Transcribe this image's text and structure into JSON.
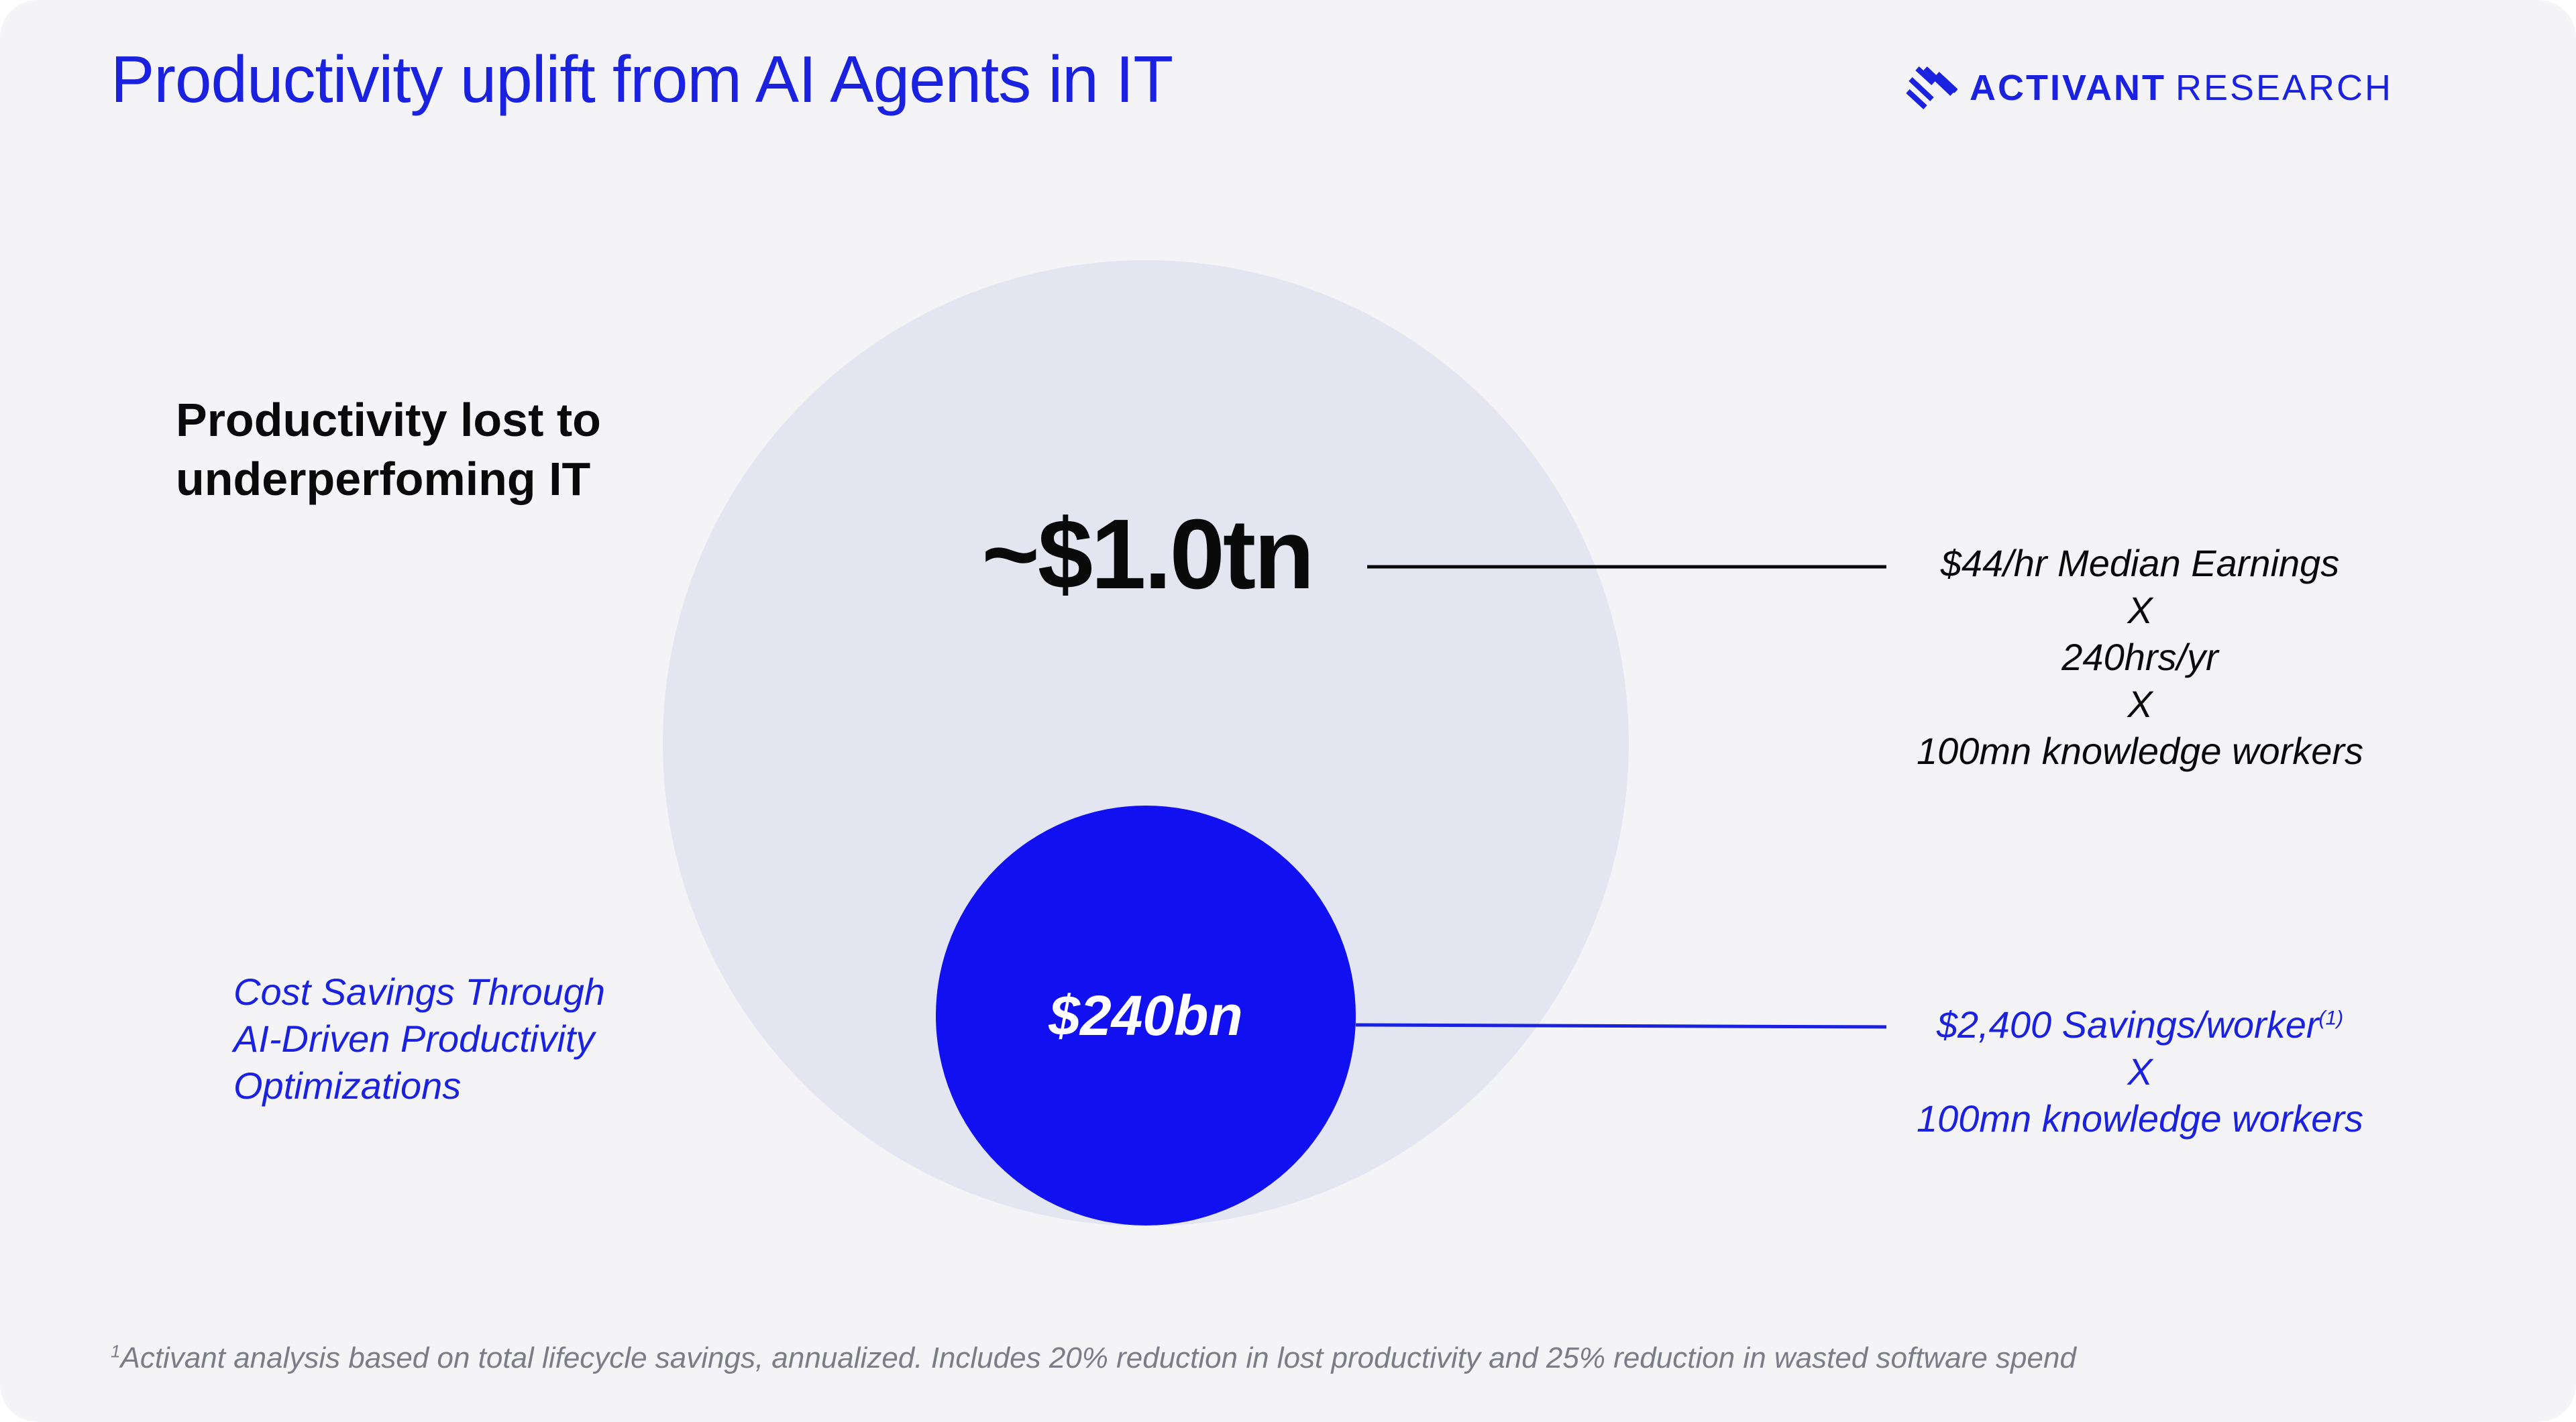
{
  "header": {
    "title": "Productivity uplift from AI Agents in IT",
    "brand": {
      "primary": "ACTIVANT",
      "secondary": "RESEARCH",
      "logo_icon": "activant-stripes-logo"
    }
  },
  "diagram": {
    "outer": {
      "label": "Productivity lost to underperfoming IT",
      "label_lines": [
        "Productivity lost to",
        "underperfoming IT"
      ],
      "value": "~$1.0tn",
      "calculation": [
        "$44/hr Median Earnings",
        "X",
        "240hrs/yr",
        "X",
        "100mn knowledge workers"
      ]
    },
    "inner": {
      "label": "Cost Savings Through AI-Driven Productivity Optimizations",
      "label_lines": [
        "Cost Savings Through",
        "AI-Driven Productivity",
        "Optimizations"
      ],
      "value": "$240bn",
      "calculation": [
        "$2,400 Savings/worker",
        "X",
        "100mn knowledge workers"
      ],
      "calculation_footnote_marker": "(1)"
    }
  },
  "footnote": {
    "marker": "1",
    "text": "Activant analysis based on total lifecycle savings, annualized. Includes 20% reduction in lost productivity and 25% reduction in wasted software spend"
  },
  "colors": {
    "background": "#f4f4f6",
    "accent_blue": "#1a22e0",
    "inner_circle": "#1010f0",
    "outer_circle": "#e3e6f0",
    "text_dark": "#0a0a0a",
    "footnote_gray": "#7c7c86"
  }
}
